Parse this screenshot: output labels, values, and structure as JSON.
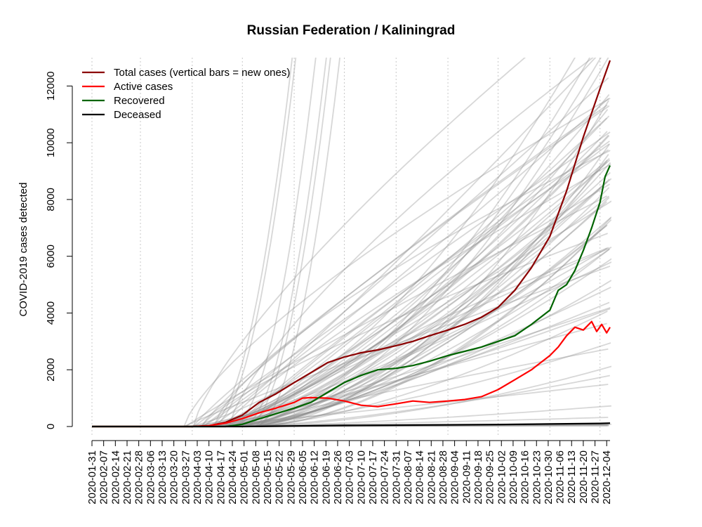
{
  "chart_data": {
    "type": "line",
    "title": "Russian Federation / Kaliningrad",
    "xlabel": "",
    "ylabel": "COVID-2019 cases detected",
    "ylim": [
      0,
      13000
    ],
    "xlim": [
      "2020-01-31",
      "2020-12-06"
    ],
    "y_ticks": [
      0,
      2000,
      4000,
      6000,
      8000,
      10000,
      12000
    ],
    "x_tick_labels": [
      "2020-01-31",
      "2020-02-07",
      "2020-02-14",
      "2020-02-21",
      "2020-02-28",
      "2020-03-06",
      "2020-03-13",
      "2020-03-20",
      "2020-03-27",
      "2020-04-03",
      "2020-04-10",
      "2020-04-17",
      "2020-04-24",
      "2020-05-01",
      "2020-05-08",
      "2020-05-15",
      "2020-05-22",
      "2020-05-29",
      "2020-06-05",
      "2020-06-12",
      "2020-06-19",
      "2020-06-26",
      "2020-07-03",
      "2020-07-10",
      "2020-07-17",
      "2020-07-24",
      "2020-07-31",
      "2020-08-07",
      "2020-08-14",
      "2020-08-21",
      "2020-08-28",
      "2020-09-04",
      "2020-09-11",
      "2020-09-18",
      "2020-09-25",
      "2020-10-02",
      "2020-10-09",
      "2020-10-16",
      "2020-10-23",
      "2020-10-30",
      "2020-11-06",
      "2020-11-13",
      "2020-11-20",
      "2020-11-27",
      "2020-12-04"
    ],
    "month_gridlines": [
      "2020-01-31",
      "2020-02-29",
      "2020-03-31",
      "2020-04-30",
      "2020-05-31",
      "2020-06-30",
      "2020-07-31",
      "2020-08-31",
      "2020-09-30",
      "2020-10-31",
      "2020-11-30"
    ],
    "grid": "vertical dotted at month boundaries",
    "legend_position": "top-left",
    "series": [
      {
        "name": "Total cases (vertical bars = new ones)",
        "color": "#8b0000",
        "x": [
          "2020-01-31",
          "2020-03-31",
          "2020-04-10",
          "2020-04-20",
          "2020-04-30",
          "2020-05-10",
          "2020-05-20",
          "2020-05-31",
          "2020-06-10",
          "2020-06-20",
          "2020-06-30",
          "2020-07-10",
          "2020-07-20",
          "2020-07-31",
          "2020-08-10",
          "2020-08-20",
          "2020-08-31",
          "2020-09-10",
          "2020-09-20",
          "2020-09-30",
          "2020-10-10",
          "2020-10-20",
          "2020-10-31",
          "2020-11-10",
          "2020-11-20",
          "2020-11-30",
          "2020-12-06"
        ],
        "values": [
          0,
          0,
          30,
          150,
          400,
          850,
          1150,
          1550,
          1900,
          2250,
          2450,
          2600,
          2700,
          2850,
          3000,
          3200,
          3400,
          3600,
          3850,
          4200,
          4800,
          5600,
          6700,
          8300,
          10200,
          11900,
          12900
        ]
      },
      {
        "name": "Active cases",
        "color": "#ff0000",
        "x": [
          "2020-01-31",
          "2020-03-31",
          "2020-04-10",
          "2020-04-20",
          "2020-04-30",
          "2020-05-10",
          "2020-05-20",
          "2020-05-31",
          "2020-06-05",
          "2020-06-10",
          "2020-06-20",
          "2020-06-30",
          "2020-07-10",
          "2020-07-20",
          "2020-07-31",
          "2020-08-10",
          "2020-08-20",
          "2020-08-31",
          "2020-09-10",
          "2020-09-20",
          "2020-09-30",
          "2020-10-10",
          "2020-10-20",
          "2020-10-31",
          "2020-11-05",
          "2020-11-10",
          "2020-11-15",
          "2020-11-20",
          "2020-11-25",
          "2020-11-28",
          "2020-12-01",
          "2020-12-04",
          "2020-12-06"
        ],
        "values": [
          0,
          0,
          30,
          120,
          280,
          480,
          650,
          850,
          1000,
          1020,
          1000,
          900,
          750,
          700,
          800,
          900,
          850,
          900,
          950,
          1050,
          1300,
          1650,
          2000,
          2500,
          2800,
          3200,
          3500,
          3400,
          3700,
          3350,
          3600,
          3300,
          3500
        ]
      },
      {
        "name": "Recovered",
        "color": "#006400",
        "x": [
          "2020-01-31",
          "2020-04-20",
          "2020-04-30",
          "2020-05-10",
          "2020-05-20",
          "2020-05-31",
          "2020-06-10",
          "2020-06-20",
          "2020-06-30",
          "2020-07-10",
          "2020-07-20",
          "2020-07-31",
          "2020-08-10",
          "2020-08-20",
          "2020-08-31",
          "2020-09-10",
          "2020-09-20",
          "2020-09-30",
          "2020-10-10",
          "2020-10-20",
          "2020-10-31",
          "2020-11-05",
          "2020-11-10",
          "2020-11-15",
          "2020-11-20",
          "2020-11-25",
          "2020-11-30",
          "2020-12-03",
          "2020-12-06"
        ],
        "values": [
          0,
          0,
          80,
          270,
          450,
          650,
          850,
          1200,
          1550,
          1800,
          2000,
          2050,
          2150,
          2300,
          2500,
          2650,
          2800,
          3000,
          3200,
          3600,
          4100,
          4800,
          5000,
          5500,
          6200,
          7000,
          7900,
          8800,
          9200
        ]
      },
      {
        "name": "Deceased",
        "color": "#000000",
        "x": [
          "2020-01-31",
          "2020-04-30",
          "2020-05-31",
          "2020-06-30",
          "2020-07-31",
          "2020-08-31",
          "2020-09-30",
          "2020-10-31",
          "2020-11-30",
          "2020-12-06"
        ],
        "values": [
          0,
          0,
          20,
          40,
          50,
          60,
          70,
          90,
          110,
          120
        ]
      }
    ]
  }
}
